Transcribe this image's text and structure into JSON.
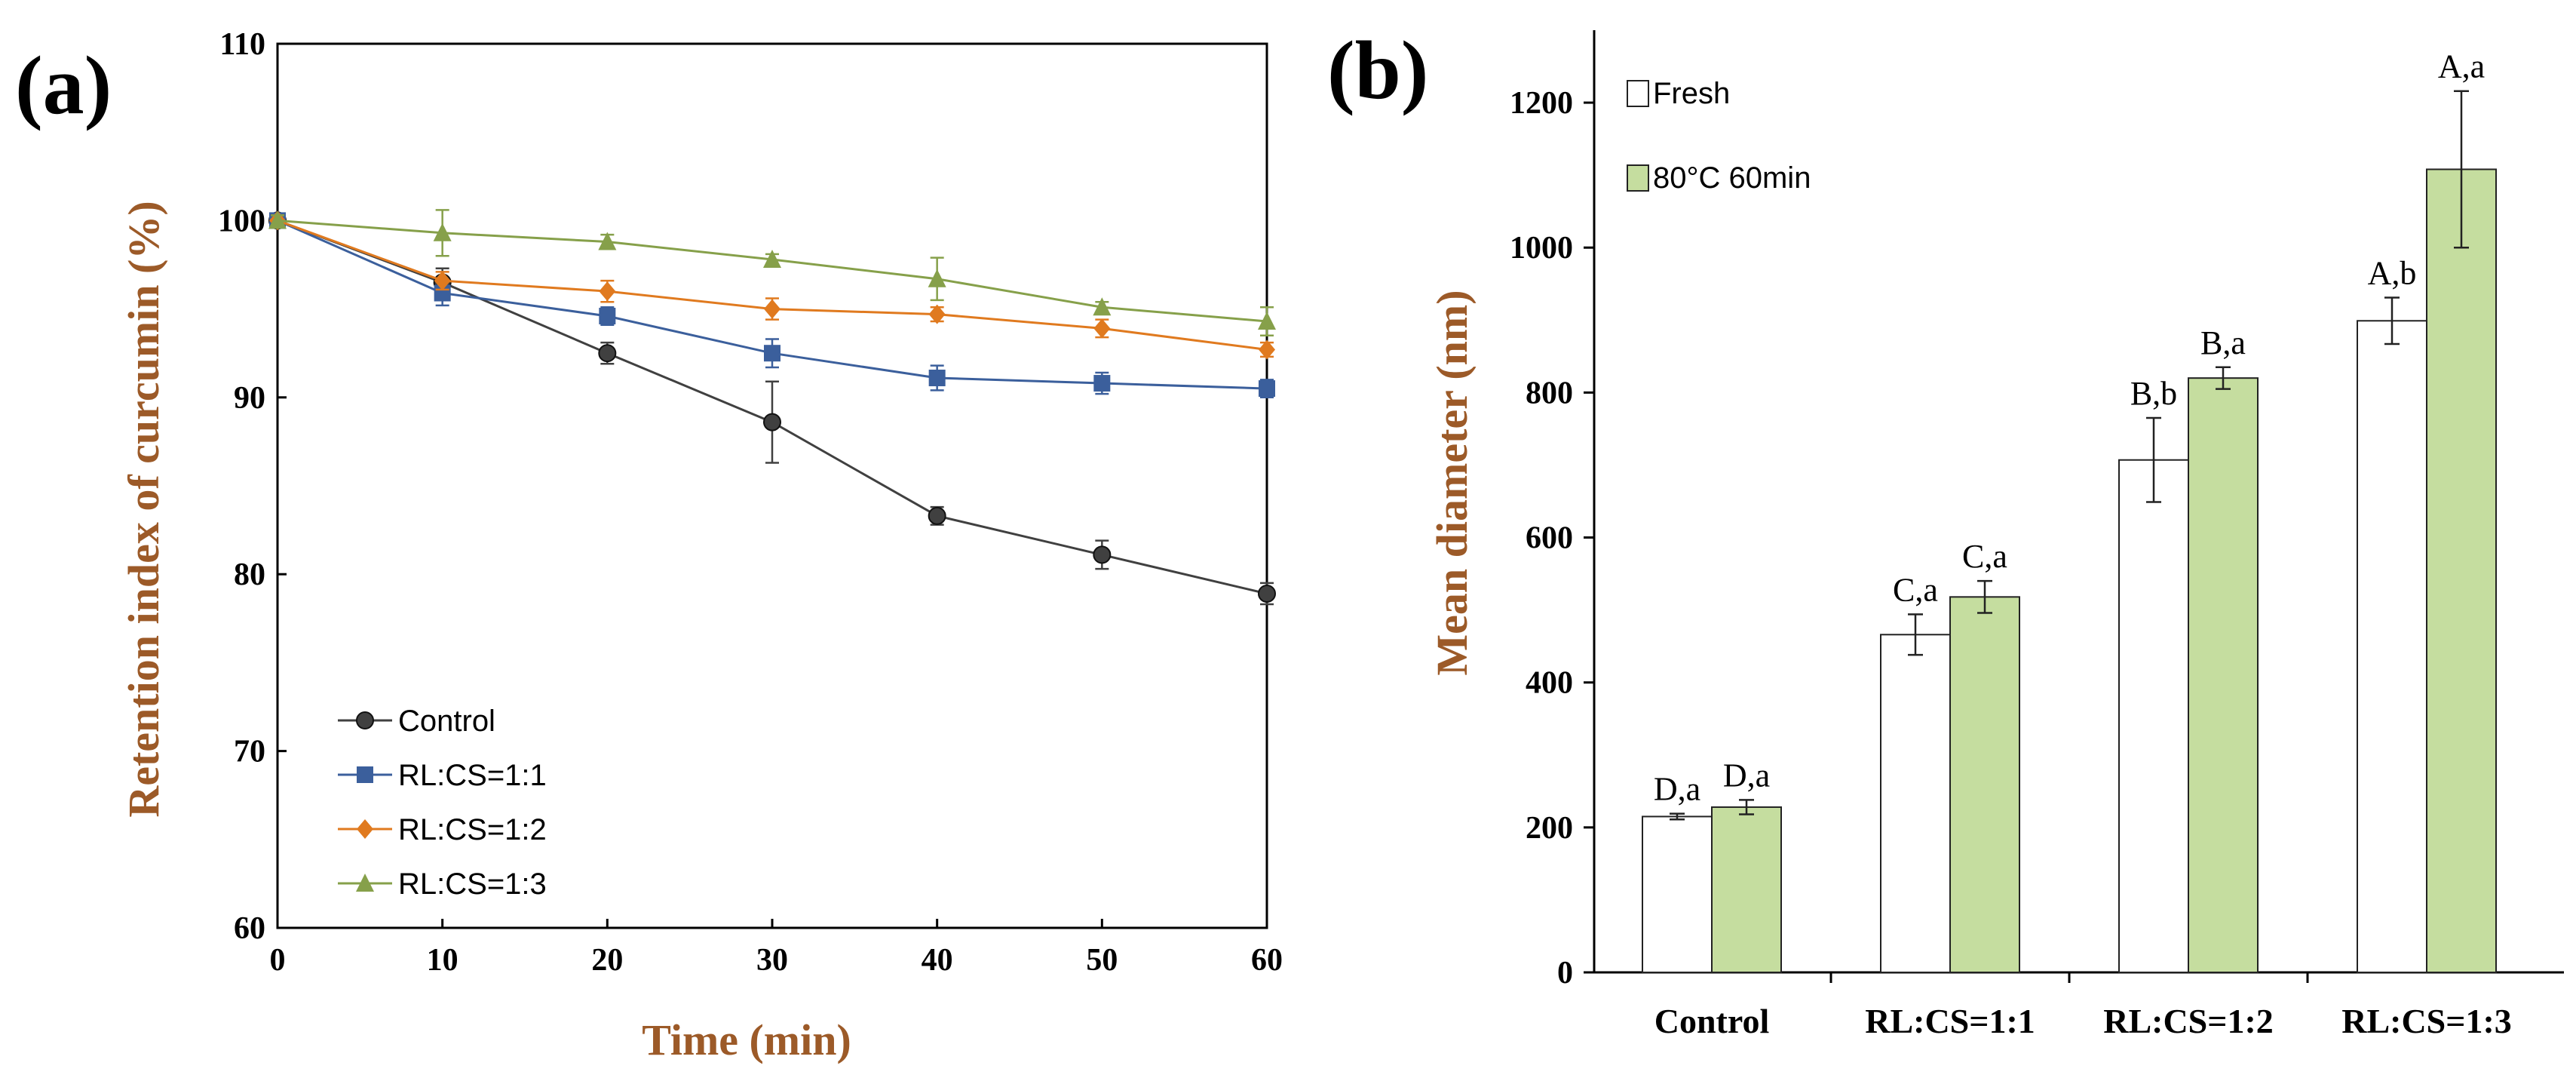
{
  "chart_data": [
    {
      "panel_label": "(a)",
      "type": "line",
      "xlabel": "Time (min)",
      "ylabel": "Retention index of curcumin (%)",
      "xlim": [
        0,
        60
      ],
      "ylim": [
        60,
        110
      ],
      "x_ticks": [
        0,
        10,
        20,
        30,
        40,
        50,
        60
      ],
      "y_ticks": [
        60,
        70,
        80,
        90,
        100,
        110
      ],
      "x": [
        0,
        10,
        20,
        30,
        40,
        50,
        60
      ],
      "legend_position": "bottom-left",
      "series": [
        {
          "name": "Control",
          "color": "#404040",
          "marker": "circle",
          "values": [
            100,
            96.5,
            92.5,
            88.6,
            83.3,
            81.1,
            78.9
          ],
          "errors": [
            0.3,
            0.8,
            0.6,
            2.3,
            0.5,
            0.8,
            0.6
          ]
        },
        {
          "name": "RL:CS=1:1",
          "color": "#3b5f9c",
          "marker": "square",
          "values": [
            100,
            95.9,
            94.6,
            92.5,
            91.1,
            90.8,
            90.5
          ],
          "errors": [
            0.3,
            0.7,
            0.5,
            0.8,
            0.7,
            0.6,
            0.5
          ]
        },
        {
          "name": "RL:CS=1:2",
          "color": "#e07a1f",
          "marker": "diamond",
          "values": [
            100,
            96.6,
            96.0,
            95.0,
            94.7,
            93.9,
            92.7
          ],
          "errors": [
            0.3,
            0.5,
            0.6,
            0.6,
            0.4,
            0.5,
            0.4
          ]
        },
        {
          "name": "RL:CS=1:3",
          "color": "#86a04a",
          "marker": "triangle",
          "values": [
            100,
            99.3,
            98.8,
            97.8,
            96.7,
            95.1,
            94.3
          ],
          "errors": [
            0.3,
            1.3,
            0.4,
            0.3,
            1.2,
            0.3,
            0.8
          ]
        }
      ]
    },
    {
      "panel_label": "(b)",
      "type": "bar",
      "xlabel": "",
      "ylabel": "Mean diameter (nm)",
      "ylim": [
        0,
        1300
      ],
      "y_ticks": [
        0,
        200,
        400,
        600,
        800,
        1000,
        1200
      ],
      "categories": [
        "Control",
        "RL:CS=1:1",
        "RL:CS=1:2",
        "RL:CS=1:3"
      ],
      "legend_position": "top-left",
      "series": [
        {
          "name": "Fresh",
          "color": "#ffffff",
          "values": [
            215,
            466,
            707,
            899
          ],
          "errors": [
            4,
            28,
            58,
            32
          ],
          "labels": [
            "D,a",
            "C,a",
            "B,b",
            "A,b"
          ]
        },
        {
          "name": "80°C 60min",
          "color": "#c5dd9f",
          "values": [
            228,
            518,
            820,
            1108
          ],
          "errors": [
            10,
            22,
            15,
            108
          ],
          "labels": [
            "D,a",
            "C,a",
            "B,a",
            "A,a"
          ]
        }
      ]
    }
  ]
}
